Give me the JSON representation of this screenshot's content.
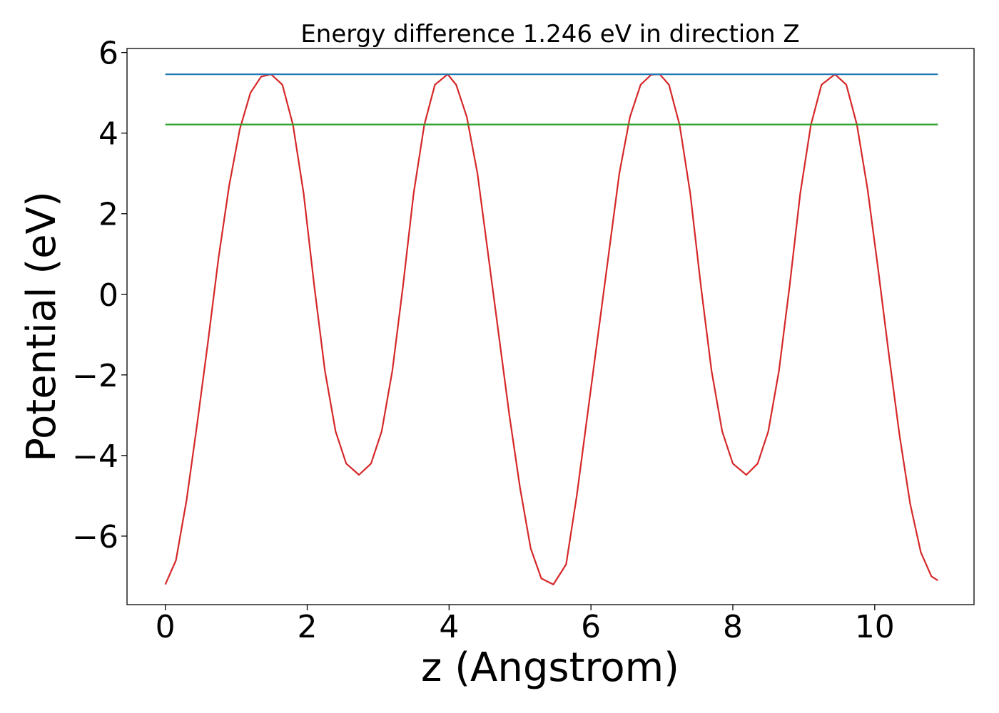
{
  "chart_data": {
    "type": "line",
    "title": "Energy difference 1.246 eV in direction Z",
    "xlabel": "z (Angstrom)",
    "ylabel": "Potential (eV)",
    "xlim": [
      -0.54,
      11.4
    ],
    "ylim": [
      -7.7,
      6.1
    ],
    "xticks": [
      0,
      2,
      4,
      6,
      8,
      10
    ],
    "yticks": [
      6,
      4,
      2,
      0,
      -2,
      -4,
      -6
    ],
    "xtick_labels": [
      "0",
      "2",
      "4",
      "6",
      "8",
      "10"
    ],
    "ytick_labels": [
      "6",
      "4",
      "2",
      "0",
      "−2",
      "−4",
      "−6"
    ],
    "grid": false,
    "series": [
      {
        "color": "#d62728",
        "x": [
          0.0,
          0.15,
          0.3,
          0.45,
          0.6,
          0.75,
          0.9,
          1.05,
          1.2,
          1.35,
          1.49,
          1.65,
          1.8,
          1.95,
          2.1,
          2.25,
          2.4,
          2.55,
          2.73,
          2.9,
          3.05,
          3.2,
          3.35,
          3.5,
          3.65,
          3.8,
          3.98,
          4.1,
          4.25,
          4.4,
          4.55,
          4.7,
          4.85,
          5.0,
          5.15,
          5.3,
          5.47,
          5.65,
          5.8,
          5.95,
          6.1,
          6.25,
          6.4,
          6.55,
          6.7,
          6.85,
          6.97,
          7.1,
          7.25,
          7.4,
          7.55,
          7.7,
          7.85,
          8.0,
          8.19,
          8.35,
          8.5,
          8.65,
          8.8,
          8.95,
          9.1,
          9.25,
          9.44,
          9.6,
          9.75,
          9.9,
          10.05,
          10.2,
          10.35,
          10.5,
          10.65,
          10.8,
          10.89
        ],
        "y": [
          -7.2,
          -6.6,
          -5.1,
          -3.2,
          -1.2,
          0.9,
          2.7,
          4.1,
          5.0,
          5.4,
          5.46,
          5.2,
          4.2,
          2.5,
          0.2,
          -1.9,
          -3.4,
          -4.2,
          -4.48,
          -4.2,
          -3.4,
          -1.9,
          0.2,
          2.5,
          4.2,
          5.2,
          5.46,
          5.2,
          4.4,
          3.0,
          1.0,
          -1.0,
          -3.0,
          -4.8,
          -6.3,
          -7.05,
          -7.2,
          -6.7,
          -5.0,
          -3.0,
          -1.0,
          1.0,
          3.0,
          4.4,
          5.2,
          5.45,
          5.46,
          5.2,
          4.2,
          2.5,
          0.2,
          -1.9,
          -3.4,
          -4.2,
          -4.48,
          -4.2,
          -3.4,
          -1.9,
          0.2,
          2.5,
          4.2,
          5.2,
          5.46,
          5.2,
          4.2,
          2.6,
          0.6,
          -1.5,
          -3.5,
          -5.2,
          -6.4,
          -7.0,
          -7.1
        ]
      },
      {
        "color": "#1f77b4",
        "x": [
          0.0,
          10.89
        ],
        "y": [
          5.46,
          5.46
        ]
      },
      {
        "color": "#2ca02c",
        "x": [
          0.0,
          10.89
        ],
        "y": [
          4.214,
          4.214
        ]
      }
    ]
  }
}
